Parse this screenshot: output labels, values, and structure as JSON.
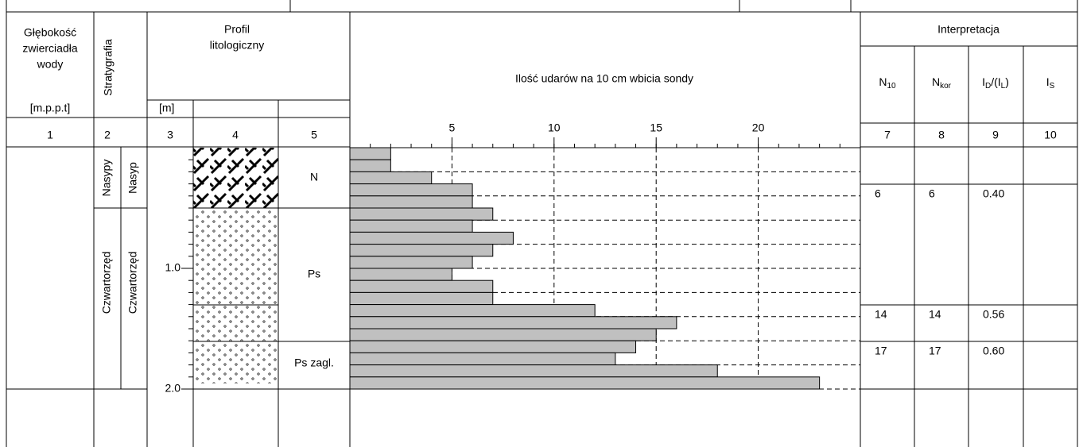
{
  "header": {
    "water_depth": [
      "Głębokość",
      "zwierciadła",
      "wody"
    ],
    "stratigraphy": "Stratygrafia",
    "profile": [
      "Profil",
      "litologiczny"
    ],
    "probe": "Ilość udarów na 10 cm wbicia sondy",
    "interpretation": "Interpretacja",
    "interp_columns": [
      [
        {
          "t": "N"
        },
        {
          "t": "10",
          "sub": true
        }
      ],
      [
        {
          "t": "N"
        },
        {
          "t": "kor",
          "sub": true
        }
      ],
      [
        {
          "t": "I"
        },
        {
          "t": "D",
          "sub": true
        },
        {
          "t": "/(I"
        },
        {
          "t": "L",
          "sub": true
        },
        {
          "t": ")"
        }
      ],
      [
        {
          "t": "I"
        },
        {
          "t": "S",
          "sub": true
        }
      ]
    ],
    "unit_depth": "[m.p.p.t]",
    "unit_m": "[m]",
    "column_numbers": [
      "1",
      "2",
      "3",
      "4",
      "5",
      "7",
      "8",
      "9",
      "10"
    ]
  },
  "stratigraphy": [
    [
      "Nasypy",
      "Nasyp"
    ],
    [
      "Czwartorzęd",
      "Czwartorzęd"
    ]
  ],
  "soils": [
    "N",
    "Ps",
    "Ps zagl."
  ],
  "depth_scale": {
    "ylim": [
      0,
      2
    ],
    "ticks": [
      {
        "value": 1,
        "label": "1.0"
      },
      {
        "value": 2,
        "label": "2.0"
      }
    ]
  },
  "probe_chart": {
    "type": "bar",
    "values": [
      2,
      2,
      4,
      6,
      6,
      7,
      6,
      8,
      7,
      6,
      5,
      7,
      7,
      12,
      16,
      15,
      14,
      13,
      18,
      23
    ],
    "color": "#c0c0c0",
    "xlim": [
      0,
      25
    ],
    "xticks": [
      5,
      10,
      15,
      20
    ]
  },
  "interpretation_rows": [
    [
      "6",
      "6",
      "0.40"
    ],
    [
      "14",
      "14",
      "0.56"
    ],
    [
      "17",
      "17",
      "0.60"
    ]
  ]
}
